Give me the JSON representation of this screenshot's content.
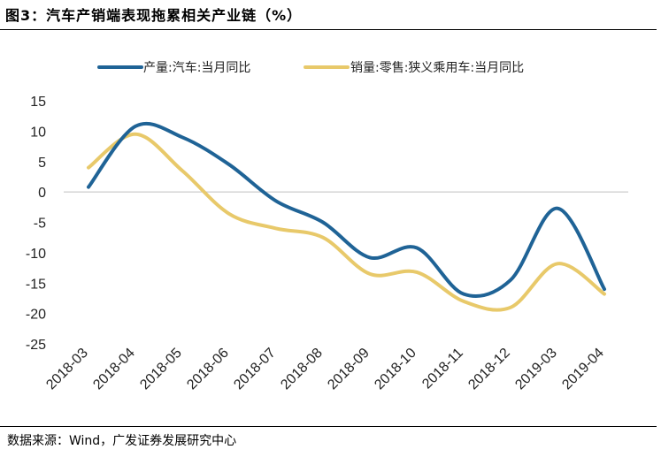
{
  "title": "图3：汽车产销端表现拖累相关产业链（%）",
  "source": "数据来源：Wind，广发证券发展研究中心",
  "colors": {
    "production": "#1f6396",
    "sales": "#e8c96a",
    "zero_line": "#bfbfbf"
  },
  "chart_data": {
    "type": "line",
    "title": "图3：汽车产销端表现拖累相关产业链（%）",
    "categories": [
      "2018-03",
      "2018-04",
      "2018-05",
      "2018-06",
      "2018-07",
      "2018-08",
      "2018-09",
      "2018-10",
      "2018-11",
      "2018-12",
      "2019-03",
      "2019-04"
    ],
    "ylim": [
      -25,
      15
    ],
    "yticks": [
      15,
      10,
      5,
      0,
      -5,
      -10,
      -15,
      -20,
      -25
    ],
    "grid": false,
    "legend": "top",
    "series": [
      {
        "name": "产量:汽车:当月同比",
        "values": [
          0.8,
          10.8,
          9.0,
          4.5,
          -1.5,
          -5.0,
          -10.8,
          -9.2,
          -16.8,
          -14.5,
          -2.7,
          -16.0
        ]
      },
      {
        "name": "销量:零售:狭义乘用车:当月同比",
        "values": [
          4.0,
          9.5,
          3.5,
          -3.6,
          -6.0,
          -7.5,
          -13.5,
          -13.2,
          -18.0,
          -19.0,
          -11.8,
          -16.8
        ]
      }
    ]
  }
}
